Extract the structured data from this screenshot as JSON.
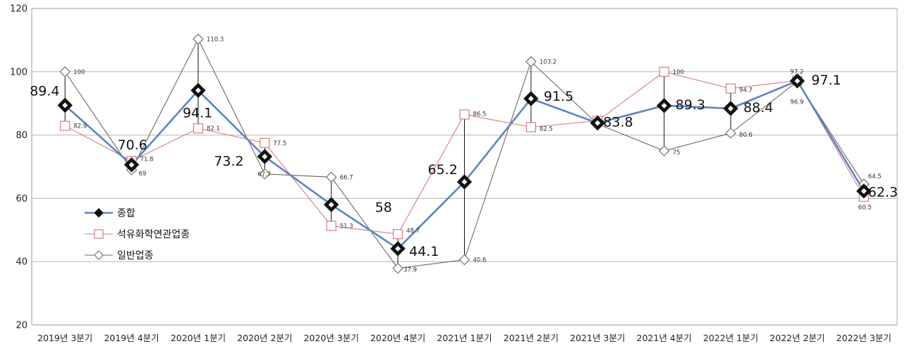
{
  "chart_data": {
    "type": "line",
    "title": "",
    "xlabel": "",
    "ylabel": "",
    "ylim": [
      20,
      120
    ],
    "yticks": [
      20,
      40,
      60,
      80,
      100,
      120
    ],
    "grid": "horizontal",
    "legend_position": "left",
    "categories": [
      "2019년 3분기",
      "2019년 4분기",
      "2020년 1분기",
      "2020년 2분기",
      "2020년 3분기",
      "2020년 4분기",
      "2021년 1분기",
      "2021년 2분기",
      "2021년 3분기",
      "2021년 4분기",
      "2022년 1분기",
      "2022년 2분기",
      "2022년 3분기"
    ],
    "series": [
      {
        "name": "종합",
        "color": "#5b84c4",
        "marker": "filled-diamond",
        "values": [
          89.4,
          70.6,
          94.1,
          73.2,
          58,
          44.1,
          65.2,
          91.5,
          83.8,
          89.3,
          88.4,
          97.1,
          62.3
        ],
        "labels": [
          "89.4",
          "70.6",
          "94.1",
          "73.2",
          "58",
          "44.1",
          "65.2",
          "91.5",
          "83.8",
          "89.3",
          "88.4",
          "97.1",
          "62.3"
        ]
      },
      {
        "name": "석유화학연관업종",
        "color": "#d97b7b",
        "marker": "open-square",
        "values": [
          82.9,
          71.8,
          82.1,
          77.5,
          51.3,
          48.7,
          86.5,
          82.5,
          84.5,
          100,
          94.7,
          97.2,
          60.5
        ],
        "labels": [
          "82.9",
          "71.8",
          "82.1",
          "77.5",
          "51.3",
          "48.7",
          "86.5",
          "82.5",
          "",
          "100",
          "94.7",
          "97.2",
          "60.5"
        ]
      },
      {
        "name": "일반업종",
        "color": "#6b6b5a",
        "marker": "open-diamond",
        "values": [
          100,
          69,
          110.3,
          67.7,
          66.7,
          37.9,
          40.6,
          103.2,
          83.5,
          75,
          80.6,
          96.9,
          64.5
        ],
        "labels": [
          "100",
          "69",
          "110.3",
          "67.7",
          "66.7",
          "37.9",
          "40.6",
          "103.2",
          "",
          "75",
          "80.6",
          "96.9",
          "64.5"
        ]
      }
    ]
  }
}
